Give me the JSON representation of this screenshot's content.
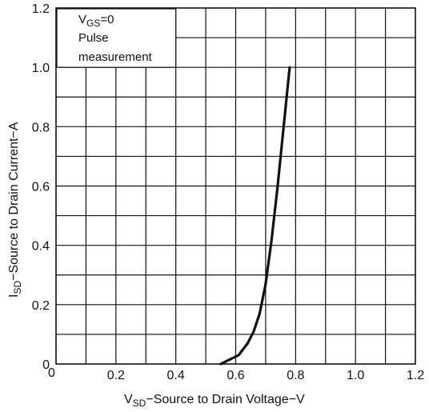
{
  "chart_data": {
    "type": "line",
    "title": "",
    "xlabel": {
      "symbol": "V",
      "subscript": "SD",
      "text": "−Source to Drain Voltage−V"
    },
    "ylabel": {
      "symbol": "I",
      "subscript": "SD",
      "text": "−Source to Drain Current−A"
    },
    "xlim": [
      0,
      1.2
    ],
    "ylim": [
      0,
      1.2
    ],
    "x_ticks": [
      "0.2",
      "0.4",
      "0.6",
      "0.8",
      "1.0",
      "1.2"
    ],
    "x_tick_values": [
      0.2,
      0.4,
      0.6,
      0.8,
      1.0,
      1.2
    ],
    "y_ticks": [
      "0",
      "0.2",
      "0.4",
      "0.6",
      "0.8",
      "1.0",
      "1.2"
    ],
    "y_tick_values": [
      0,
      0.2,
      0.4,
      0.6,
      0.8,
      1.0,
      1.2
    ],
    "origin_label": "0",
    "grid": true,
    "grid_minor_step": 0.1,
    "legend": {
      "placement": "top-left",
      "line1": {
        "symbol": "V",
        "subscript": "GS",
        "text": "=0"
      },
      "line2": "Pulse",
      "line3": "measurement"
    },
    "series": [
      {
        "color": "#111111",
        "x": [
          0.55,
          0.58,
          0.61,
          0.64,
          0.66,
          0.68,
          0.7,
          0.72,
          0.74,
          0.76,
          0.78
        ],
        "y": [
          0.0,
          0.015,
          0.03,
          0.07,
          0.11,
          0.17,
          0.27,
          0.42,
          0.6,
          0.8,
          1.0
        ]
      }
    ]
  }
}
